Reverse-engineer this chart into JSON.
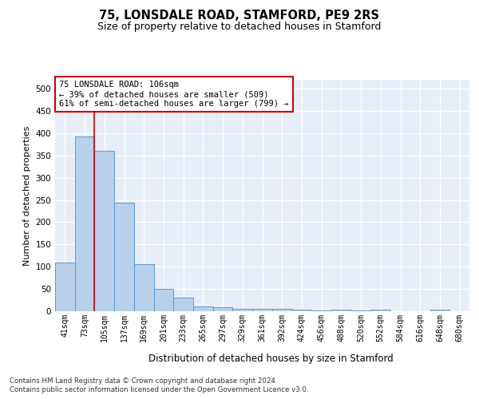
{
  "title1": "75, LONSDALE ROAD, STAMFORD, PE9 2RS",
  "title2": "Size of property relative to detached houses in Stamford",
  "xlabel": "Distribution of detached houses by size in Stamford",
  "ylabel": "Number of detached properties",
  "bar_labels": [
    "41sqm",
    "73sqm",
    "105sqm",
    "137sqm",
    "169sqm",
    "201sqm",
    "233sqm",
    "265sqm",
    "297sqm",
    "329sqm",
    "361sqm",
    "392sqm",
    "424sqm",
    "456sqm",
    "488sqm",
    "520sqm",
    "552sqm",
    "584sqm",
    "616sqm",
    "648sqm",
    "680sqm"
  ],
  "bar_values": [
    110,
    393,
    360,
    243,
    105,
    50,
    30,
    10,
    9,
    5,
    6,
    6,
    3,
    1,
    4,
    1,
    4,
    0,
    0,
    3,
    0
  ],
  "bar_color": "#b8d0ea",
  "bar_edge_color": "#5b9bd5",
  "vline_color": "#cc0000",
  "annotation_text": "75 LONSDALE ROAD: 106sqm\n← 39% of detached houses are smaller (509)\n61% of semi-detached houses are larger (799) →",
  "annotation_box_color": "white",
  "annotation_box_edge": "#cc0000",
  "ylim": [
    0,
    520
  ],
  "yticks": [
    0,
    50,
    100,
    150,
    200,
    250,
    300,
    350,
    400,
    450,
    500
  ],
  "footer1": "Contains HM Land Registry data © Crown copyright and database right 2024.",
  "footer2": "Contains public sector information licensed under the Open Government Licence v3.0.",
  "plot_bg_color": "#e8eef8"
}
